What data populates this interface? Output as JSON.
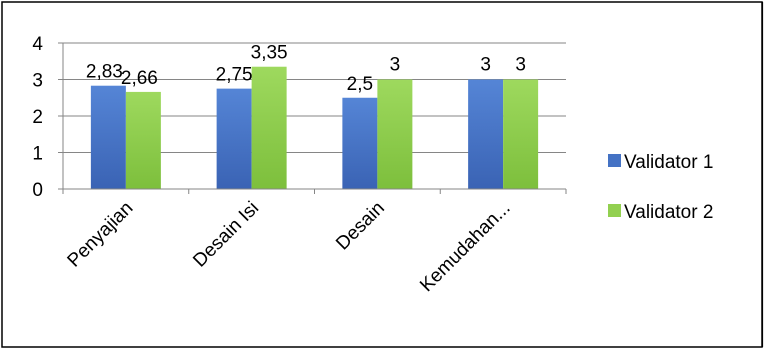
{
  "chart_data": {
    "type": "bar",
    "title": "",
    "xlabel": "",
    "ylabel": "",
    "categories": [
      "Penyajian",
      "Desain Isi",
      "Desain",
      "Kemudahan..."
    ],
    "series": [
      {
        "name": "Validator 1",
        "values": [
          2.83,
          2.75,
          2.5,
          3
        ],
        "labels": [
          "2,83",
          "2,75",
          "2,5",
          "3"
        ],
        "color": "#4472C4"
      },
      {
        "name": "Validator 2",
        "values": [
          2.66,
          3.35,
          3,
          3
        ],
        "labels": [
          "2,66",
          "3,35",
          "3",
          "3"
        ],
        "color": "#92D050"
      }
    ],
    "ylim": [
      0,
      4
    ],
    "yticks": [
      "0",
      "1",
      "2",
      "3",
      "4"
    ],
    "grid": true,
    "legend_position": "right"
  }
}
